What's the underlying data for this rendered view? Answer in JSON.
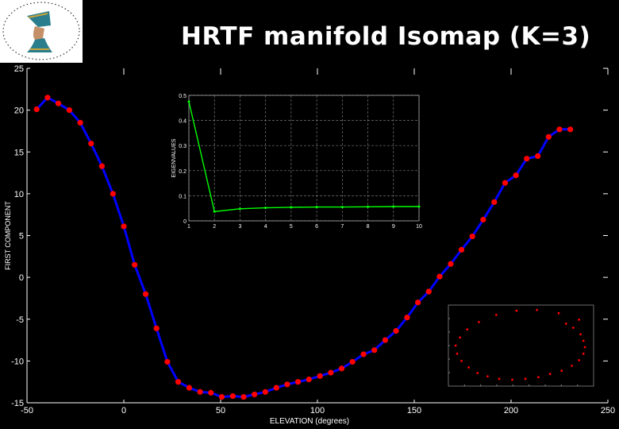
{
  "title": "HRTF manifold Isomap (K=3)",
  "colors": {
    "background": "#000000",
    "line": "#0000ff",
    "marker": "#ff0000",
    "eigen_line": "#00ff00",
    "text": "#ffffff"
  },
  "logo": {
    "icon": "nefertiti-bust-logo"
  },
  "chart_data": [
    {
      "type": "line",
      "title": "",
      "xlabel": "ELEVATION (degrees)",
      "ylabel": "FIRST COMPONENT",
      "xlim": [
        -50,
        250
      ],
      "ylim": [
        -15,
        25
      ],
      "xticks": [
        "-50",
        "0",
        "50",
        "100",
        "150",
        "200",
        "250"
      ],
      "yticks": [
        "25",
        "20",
        "15",
        "10",
        "5",
        "0",
        "-5",
        "-10",
        "-15"
      ],
      "grid": false,
      "x": [
        -45,
        -39.4,
        -33.8,
        -28.1,
        -22.5,
        -16.9,
        -11.3,
        -5.6,
        0,
        5.6,
        11.3,
        16.9,
        22.5,
        28.1,
        33.8,
        39.4,
        45,
        50.6,
        56.3,
        61.9,
        67.5,
        73.1,
        78.8,
        84.4,
        90,
        95.6,
        101.3,
        106.9,
        112.5,
        118.1,
        123.8,
        129.4,
        135,
        140.6,
        146.3,
        151.9,
        157.5,
        163.1,
        168.8,
        174.4,
        180,
        185.6,
        191.3,
        196.9,
        202.5,
        208.1,
        213.8,
        219.4,
        225,
        230.6
      ],
      "series": [
        {
          "values": [
            20.1,
            21.5,
            20.8,
            20.0,
            18.5,
            16.0,
            13.3,
            10.0,
            6.1,
            1.5,
            -2.0,
            -6.1,
            -10.1,
            -12.5,
            -13.2,
            -13.7,
            -13.8,
            -14.3,
            -14.2,
            -14.3,
            -14.0,
            -13.7,
            -13.2,
            -12.8,
            -12.5,
            -12.2,
            -11.8,
            -11.4,
            -10.9,
            -10.1,
            -9.2,
            -8.7,
            -7.5,
            -6.4,
            -4.8,
            -3.0,
            -1.7,
            0.1,
            1.6,
            3.3,
            4.9,
            6.9,
            9.0,
            11.3,
            12.2,
            14.2,
            14.5,
            16.8,
            17.7,
            17.7
          ]
        }
      ]
    },
    {
      "type": "line",
      "title": "",
      "xlabel": "",
      "ylabel": "EIGENVALUES",
      "xlim": [
        1,
        10
      ],
      "ylim": [
        0,
        0.5
      ],
      "xticks": [
        "1",
        "2",
        "3",
        "4",
        "5",
        "6",
        "7",
        "8",
        "9",
        "10"
      ],
      "yticks": [
        "0",
        "0.1",
        "0.2",
        "0.3",
        "0.4",
        "0.5"
      ],
      "grid": true,
      "x": [
        1,
        2,
        3,
        4,
        5,
        6,
        7,
        8,
        9,
        10
      ],
      "series": [
        {
          "values": [
            0.475,
            0.037,
            0.048,
            0.052,
            0.054,
            0.055,
            0.055,
            0.056,
            0.057,
            0.057
          ]
        }
      ]
    },
    {
      "type": "scatter",
      "title": "",
      "xlabel": "",
      "ylabel": "",
      "note_ticks_illegible": true,
      "points": [
        [
          0.9,
          0.82
        ],
        [
          0.76,
          0.9
        ],
        [
          0.61,
          0.94
        ],
        [
          0.47,
          0.93
        ],
        [
          0.33,
          0.88
        ],
        [
          0.21,
          0.79
        ],
        [
          0.13,
          0.7
        ],
        [
          0.08,
          0.6
        ],
        [
          0.05,
          0.5
        ],
        [
          0.06,
          0.4
        ],
        [
          0.09,
          0.31
        ],
        [
          0.14,
          0.23
        ],
        [
          0.2,
          0.16
        ],
        [
          0.27,
          0.12
        ],
        [
          0.35,
          0.09
        ],
        [
          0.44,
          0.08
        ],
        [
          0.53,
          0.09
        ],
        [
          0.62,
          0.11
        ],
        [
          0.7,
          0.15
        ],
        [
          0.78,
          0.19
        ],
        [
          0.85,
          0.25
        ],
        [
          0.9,
          0.32
        ],
        [
          0.93,
          0.4
        ],
        [
          0.94,
          0.48
        ],
        [
          0.93,
          0.56
        ],
        [
          0.91,
          0.64
        ],
        [
          0.86,
          0.72
        ],
        [
          0.81,
          0.77
        ]
      ]
    }
  ]
}
